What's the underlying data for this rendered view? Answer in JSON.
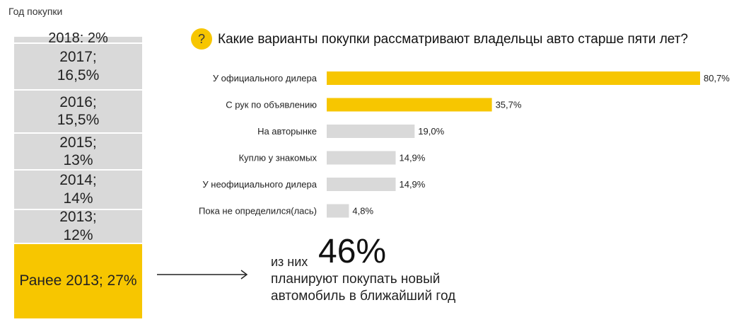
{
  "chart_data": [
    {
      "type": "stacked-bar",
      "title": "Год покупки",
      "segments": [
        {
          "label": "2018: 2%",
          "year": "2018",
          "value": 2,
          "color": "#d9d9d9"
        },
        {
          "label": "2017;\n16,5%",
          "year": "2017",
          "value": 16.5,
          "color": "#d9d9d9"
        },
        {
          "label": "2016;\n15,5%",
          "year": "2016",
          "value": 15.5,
          "color": "#d9d9d9"
        },
        {
          "label": "2015;\n13%",
          "year": "2015",
          "value": 13,
          "color": "#d9d9d9"
        },
        {
          "label": "2014;\n14%",
          "year": "2014",
          "value": 14,
          "color": "#d9d9d9"
        },
        {
          "label": "2013;\n12%",
          "year": "2013",
          "value": 12,
          "color": "#d9d9d9"
        },
        {
          "label": "Ранее 2013; 27%",
          "year": "Ранее 2013",
          "value": 27,
          "color": "#f7c600"
        }
      ]
    },
    {
      "type": "bar",
      "orientation": "horizontal",
      "title": "Какие варианты покупки рассматривают владельцы авто старше пяти лет?",
      "categories": [
        "У официального дилера",
        "С рук по объявлению",
        "На авторынке",
        "Куплю у знакомых",
        "У неофициального дилера",
        "Пока не определился(лась)"
      ],
      "values": [
        80.7,
        35.7,
        19.0,
        14.9,
        14.9,
        4.8
      ],
      "value_labels": [
        "80,7%",
        "35,7%",
        "19,0%",
        "14,9%",
        "14,9%",
        "4,8%"
      ],
      "colors": [
        "#f7c600",
        "#f7c600",
        "#d9d9d9",
        "#d9d9d9",
        "#d9d9d9",
        "#d9d9d9"
      ],
      "xlim": [
        0,
        80.7
      ]
    }
  ],
  "question_icon": "question-mark-icon",
  "callout": {
    "prefix": "из них",
    "percent": "46%",
    "line1": "планируют покупать новый",
    "line2": "автомобиль в ближайший год"
  },
  "arrow_icon": "arrow-right-icon"
}
